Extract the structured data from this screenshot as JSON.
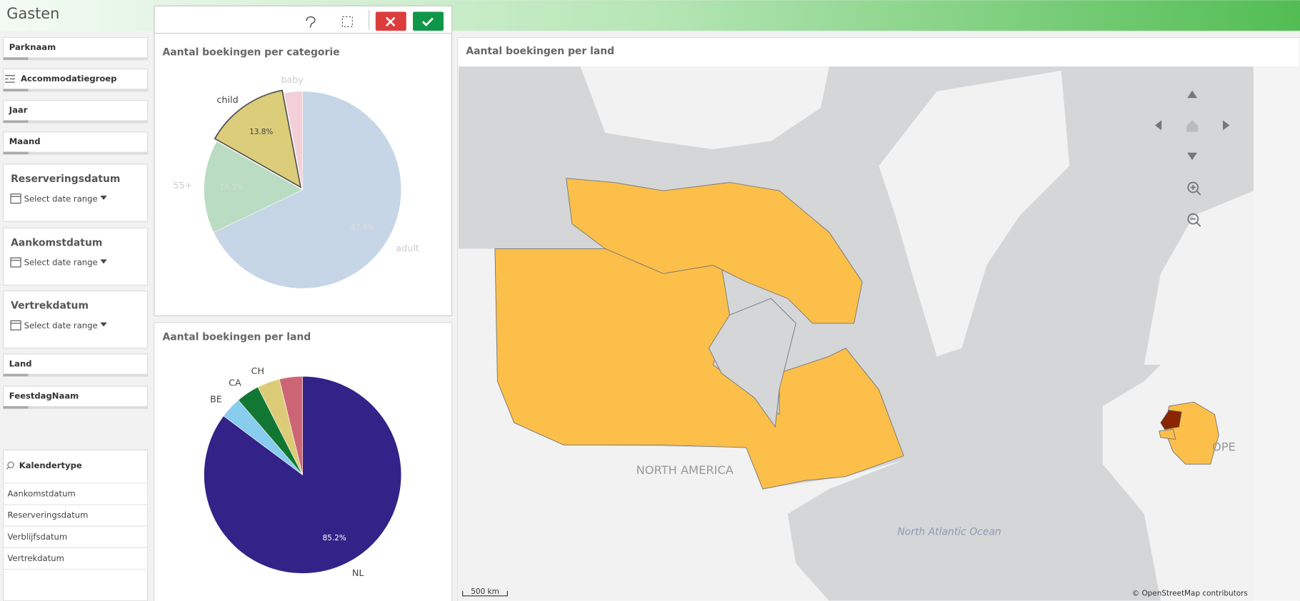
{
  "header": {
    "title": "Gasten"
  },
  "filters": [
    {
      "label": "Parknaam"
    },
    {
      "label": "Accommodatiegroep"
    },
    {
      "label": "Jaar"
    },
    {
      "label": "Maand"
    },
    {
      "label": "Reserveringsdatum",
      "placeholder": "Select date range"
    },
    {
      "label": "Aankomstdatum",
      "placeholder": "Select date range"
    },
    {
      "label": "Vertrekdatum",
      "placeholder": "Select date range"
    },
    {
      "label": "Land"
    },
    {
      "label": "FeestdagNaam"
    }
  ],
  "calendar_list": {
    "title": "Kalendertype",
    "items": [
      "Aankomstdatum",
      "Reserveringsdatum",
      "Verblijfsdatum",
      "Vertrekdatum"
    ]
  },
  "chart_data": [
    {
      "type": "pie",
      "title": "Aantal boekingen per categorie",
      "categories": [
        "adult",
        "55+",
        "child",
        "baby"
      ],
      "values": [
        67.9,
        15.3,
        13.8,
        3.0
      ],
      "value_labels": [
        "67.9%",
        "15.3%",
        "13.8%",
        null
      ],
      "colors": [
        "#c6d6e6",
        "#b9dcc3",
        "#dccd7a",
        "#f3d0d8"
      ]
    },
    {
      "type": "pie",
      "title": "Aantal boekingen per land",
      "categories": [
        "NL",
        "BE",
        "CA",
        "CH",
        null
      ],
      "values": [
        85.2,
        3.5,
        3.8,
        3.7,
        3.8
      ],
      "value_labels": [
        "85.2%",
        null,
        null,
        null,
        null
      ],
      "colors": [
        "#332288",
        "#88ccee",
        "#117733",
        "#ddcc77",
        "#cc6677"
      ]
    }
  ],
  "map": {
    "title": "Aantal boekingen per land",
    "labels": [
      "NORTH AMERICA",
      "North Atlantic Ocean",
      "OPE"
    ],
    "scale": "500 km",
    "attribution": "© OpenStreetMap contributors"
  }
}
